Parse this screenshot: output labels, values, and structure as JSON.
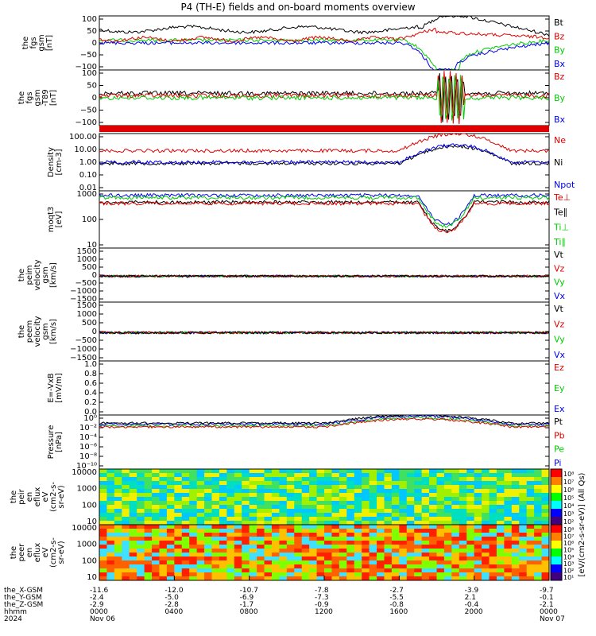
{
  "title": "P4 (TH-E) fields and on-board moments overview",
  "colors": {
    "black": "#000000",
    "red": "#e00000",
    "green": "#00cc00",
    "blue": "#0000ee"
  },
  "chart_data": [
    {
      "type": "line",
      "id": "fgs_gsm",
      "ylabel_lines": [
        "the",
        "fgs",
        "gsm",
        "[nT]"
      ],
      "ytick_labels": [
        "100",
        "50",
        "0",
        "−50",
        "−100"
      ],
      "ylim": [
        -100,
        100
      ],
      "legend": [
        {
          "name": "Bt",
          "color": "#000000"
        },
        {
          "name": "Bz",
          "color": "#e00000"
        },
        {
          "name": "By",
          "color": "#00cc00"
        },
        {
          "name": "Bx",
          "color": "#0000ee"
        }
      ]
    },
    {
      "type": "line",
      "id": "fgs_gsm_t89",
      "ylabel_lines": [
        "the",
        "fgs",
        "gsm",
        "-T89",
        "[nT]"
      ],
      "ytick_labels": [
        "100",
        "50",
        "0",
        "−50",
        "−100"
      ],
      "ylim": [
        -130,
        100
      ],
      "legend": [
        {
          "name": "Bz",
          "color": "#e00000"
        },
        {
          "name": "By",
          "color": "#00cc00"
        },
        {
          "name": "Bx",
          "color": "#0000ee"
        }
      ]
    },
    {
      "type": "line",
      "id": "density",
      "ylabel_lines": [
        "Density",
        "[cm-3]"
      ],
      "yscale": "log",
      "ytick_labels": [
        "100.00",
        "10.00",
        "1.00",
        "0.10",
        "0.01"
      ],
      "ylim": [
        0.005,
        200
      ],
      "legend": [
        {
          "name": "Ne",
          "color": "#e00000"
        },
        {
          "name": "Ni",
          "color": "#000000"
        },
        {
          "name": "Npot",
          "color": "#0000ee"
        }
      ]
    },
    {
      "type": "line",
      "id": "temperature",
      "ylabel_lines": [
        "moqt3",
        "[eV]"
      ],
      "yscale": "log",
      "ytick_labels": [
        "1000",
        "100",
        "10"
      ],
      "ylim": [
        3,
        5000
      ],
      "legend": [
        {
          "name": "Te⊥",
          "color": "#e00000"
        },
        {
          "name": "Te∥",
          "color": "#000000"
        },
        {
          "name": "Ti⊥",
          "color": "#00cc00"
        },
        {
          "name": "Ti∥",
          "color": "#00cc00"
        }
      ]
    },
    {
      "type": "line",
      "id": "peim_velocity",
      "ylabel_lines": [
        "the",
        "peim",
        "velocity",
        "gsm",
        "[km/s]"
      ],
      "ytick_labels": [
        "1500",
        "1000",
        "500",
        "0",
        "−500",
        "−1000",
        "−1500"
      ],
      "ylim": [
        -1500,
        1500
      ],
      "legend": [
        {
          "name": "Vt",
          "color": "#000000"
        },
        {
          "name": "Vz",
          "color": "#e00000"
        },
        {
          "name": "Vy",
          "color": "#00cc00"
        },
        {
          "name": "Vx",
          "color": "#0000ee"
        }
      ]
    },
    {
      "type": "line",
      "id": "peem_velocity",
      "ylabel_lines": [
        "the",
        "peem",
        "velocity",
        "gsm",
        "[km/s]"
      ],
      "ytick_labels": [
        "1500",
        "1000",
        "500",
        "0",
        "−500",
        "−1000",
        "−1500"
      ],
      "ylim": [
        -1500,
        1500
      ],
      "legend": [
        {
          "name": "Vt",
          "color": "#000000"
        },
        {
          "name": "Vz",
          "color": "#e00000"
        },
        {
          "name": "Vy",
          "color": "#00cc00"
        },
        {
          "name": "Vx",
          "color": "#0000ee"
        }
      ]
    },
    {
      "type": "line",
      "id": "efield",
      "ylabel_lines": [
        "E=-VxB",
        "[mV/m]"
      ],
      "ytick_labels": [
        "1.0",
        "0.8",
        "0.6",
        "0.4",
        "0.2",
        "0.0"
      ],
      "ylim": [
        0,
        1
      ],
      "legend": [
        {
          "name": "Ez",
          "color": "#e00000"
        },
        {
          "name": "Ey",
          "color": "#00cc00"
        },
        {
          "name": "Ex",
          "color": "#0000ee"
        }
      ]
    },
    {
      "type": "line",
      "id": "pressure",
      "ylabel_lines": [
        "Pressure",
        "[nPa]"
      ],
      "yscale": "log",
      "ytick_labels": [
        "10⁰",
        "10⁻²",
        "10⁻⁴",
        "10⁻⁶",
        "10⁻⁸",
        "10⁻¹⁰"
      ],
      "ylim": [
        1e-10,
        1
      ],
      "legend": [
        {
          "name": "Pt",
          "color": "#000000"
        },
        {
          "name": "Pb",
          "color": "#e00000"
        },
        {
          "name": "Pe",
          "color": "#00cc00"
        },
        {
          "name": "Pi",
          "color": "#0000ee"
        }
      ]
    },
    {
      "type": "heatmap",
      "id": "peir_en_eflux",
      "ylabel_lines": [
        "the",
        "peir",
        "en",
        "eflux",
        "eV",
        "(cm2-s-",
        "sr-eV)"
      ],
      "yscale": "log",
      "ytick_labels": [
        "10000",
        "1000",
        "100",
        "10"
      ],
      "colorbar_ticks": [
        "10⁸",
        "10⁷",
        "10⁶",
        "10⁵",
        "10⁴",
        "10³",
        "10²"
      ]
    },
    {
      "type": "heatmap",
      "id": "peer_en_eflux",
      "ylabel_lines": [
        "the",
        "peer",
        "en",
        "eflux",
        "eV",
        "(cm2-s-",
        "sr-eV)"
      ],
      "yscale": "log",
      "ytick_labels": [
        "10000",
        "1000",
        "100",
        "10"
      ],
      "colorbar_ticks": [
        "10⁸",
        "10⁷",
        "10⁶",
        "10⁵",
        "10⁴",
        "10³",
        "10²",
        "10¹"
      ]
    }
  ],
  "colorbar_label": "[eV/(cm2-s-sr-eV)] (All Qs)",
  "x_axis": {
    "row_labels": [
      "the_X-GSM",
      "the_Y-GSM",
      "the_Z-GSM",
      "hhmm",
      "2024"
    ],
    "ticks": [
      {
        "x": "-11.6",
        "y": "-2.4",
        "z": "-2.9",
        "hhmm": "0000",
        "date": "Nov 06"
      },
      {
        "x": "-12.0",
        "y": "-5.0",
        "z": "-2.8",
        "hhmm": "0400",
        "date": ""
      },
      {
        "x": "-10.7",
        "y": "-6.9",
        "z": "-1.7",
        "hhmm": "0800",
        "date": ""
      },
      {
        "x": "-7.8",
        "y": "-7.3",
        "z": "-0.9",
        "hhmm": "1200",
        "date": ""
      },
      {
        "x": "-2.7",
        "y": "-5.5",
        "z": "-0.8",
        "hhmm": "1600",
        "date": ""
      },
      {
        "x": "-3.9",
        "y": "2.1",
        "z": "-0.4",
        "hhmm": "2000",
        "date": ""
      },
      {
        "x": "-9.7",
        "y": "-0.1",
        "z": "-2.1",
        "hhmm": "0000",
        "date": "Nov 07"
      }
    ]
  }
}
